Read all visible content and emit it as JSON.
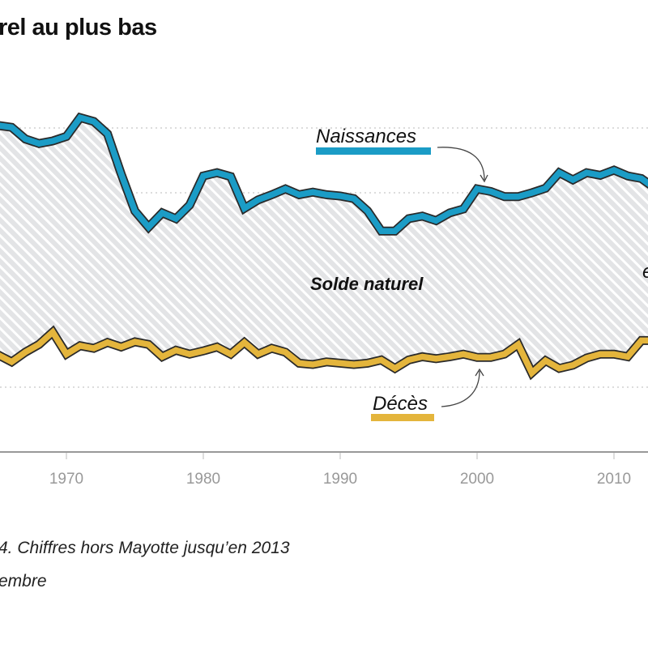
{
  "title": "rel au plus bas",
  "footnote_lines": [
    "4. Chiffres hors Mayotte jusqu’en 2013",
    "embre"
  ],
  "chart_data": {
    "type": "line",
    "title": "rel au plus bas",
    "xlabel": "",
    "ylabel": "",
    "x_ticks": [
      "1970",
      "1980",
      "1990",
      "2000",
      "2010"
    ],
    "xlim": [
      1965,
      2012.5
    ],
    "ylim": [
      400,
      910
    ],
    "gridlines": [
      500,
      600,
      700,
      800,
      900
    ],
    "grid": true,
    "x": [
      1965,
      1966,
      1967,
      1968,
      1969,
      1970,
      1971,
      1972,
      1973,
      1974,
      1975,
      1976,
      1977,
      1978,
      1979,
      1980,
      1981,
      1982,
      1983,
      1984,
      1985,
      1986,
      1987,
      1988,
      1989,
      1990,
      1991,
      1992,
      1993,
      1994,
      1995,
      1996,
      1997,
      1998,
      1999,
      2000,
      2001,
      2002,
      2003,
      2004,
      2005,
      2006,
      2007,
      2008,
      2009,
      2010,
      2011,
      2012,
      2013
    ],
    "series": [
      {
        "name": "Naissances",
        "color": "#1b9cc6",
        "values": [
          904,
          901,
          883,
          876,
          880,
          887,
          916,
          910,
          891,
          829,
          772,
          747,
          769,
          760,
          781,
          826,
          831,
          825,
          776,
          789,
          797,
          806,
          797,
          801,
          797,
          795,
          791,
          772,
          741,
          741,
          760,
          764,
          757,
          769,
          775,
          806,
          802,
          794,
          794,
          800,
          807,
          831,
          820,
          831,
          827,
          835,
          826,
          822,
          807
        ]
      },
      {
        "name": "Décès",
        "color": "#e4b53c",
        "values": [
          550,
          539,
          554,
          566,
          585,
          551,
          564,
          560,
          569,
          562,
          570,
          566,
          547,
          557,
          551,
          556,
          562,
          551,
          569,
          551,
          560,
          554,
          537,
          535,
          539,
          537,
          535,
          537,
          542,
          529,
          542,
          547,
          544,
          547,
          551,
          546,
          546,
          551,
          566,
          522,
          541,
          529,
          534,
          545,
          551,
          551,
          547,
          572,
          572
        ]
      }
    ],
    "annotations": [
      "Naissances",
      "Solde naturel",
      "Décès",
      "e"
    ]
  }
}
